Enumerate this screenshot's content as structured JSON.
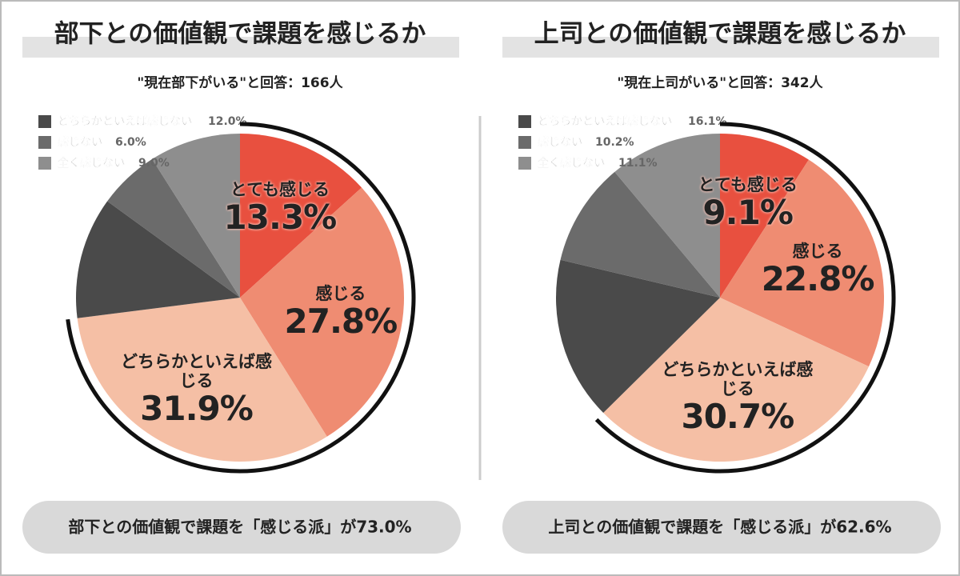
{
  "chart_data": [
    {
      "type": "pie",
      "title": "部下との価値観で課題を感じるか",
      "subtitle": "\"現在部下がいる\"と回答：166人",
      "categories": [
        "とても感じる",
        "感じる",
        "どちらかといえば感じる",
        "どちらかといえば感じない",
        "感じない",
        "全く感じない"
      ],
      "values": [
        13.3,
        27.8,
        31.9,
        12.0,
        6.0,
        9.0
      ],
      "value_labels": [
        "13.3%",
        "27.8%",
        "31.9%",
        "12.0%",
        "6.0%",
        "9.0%"
      ],
      "colors": [
        "#e8503f",
        "#ef8c72",
        "#f5bfa5",
        "#4a4a4a",
        "#6b6b6b",
        "#8e8e8e"
      ],
      "annotation": "部下との価値観で課題を「感じる派」が73.0%"
    },
    {
      "type": "pie",
      "title": "上司との価値観で課題を感じるか",
      "subtitle": "\"現在上司がいる\"と回答：342人",
      "categories": [
        "とても感じる",
        "感じる",
        "どちらかといえば感じる",
        "どちらかといえば感じない",
        "感じない",
        "全く感じない"
      ],
      "values": [
        9.1,
        22.8,
        30.7,
        16.1,
        10.2,
        11.1
      ],
      "value_labels": [
        "9.1%",
        "22.8%",
        "30.7%",
        "16.1%",
        "10.2%",
        "11.1%"
      ],
      "colors": [
        "#e8503f",
        "#ef8c72",
        "#f5bfa5",
        "#4a4a4a",
        "#6b6b6b",
        "#8e8e8e"
      ],
      "annotation": "上司との価値観で課題を「感じる派」が62.6%"
    }
  ]
}
